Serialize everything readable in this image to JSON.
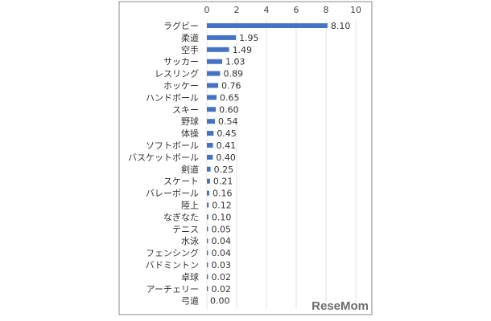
{
  "chart_data": {
    "type": "bar",
    "orientation": "horizontal",
    "categories": [
      "ラグビー",
      "柔道",
      "空手",
      "サッカー",
      "レスリング",
      "ホッケー",
      "ハンドボール",
      "スキー",
      "野球",
      "体操",
      "ソフトボール",
      "バスケットボール",
      "剣道",
      "スケート",
      "バレーボール",
      "陸上",
      "なぎなた",
      "テニス",
      "水泳",
      "フェンシング",
      "バドミントン",
      "卓球",
      "アーチェリー",
      "弓道"
    ],
    "values": [
      8.1,
      1.95,
      1.49,
      1.03,
      0.89,
      0.76,
      0.65,
      0.6,
      0.54,
      0.45,
      0.41,
      0.4,
      0.25,
      0.21,
      0.16,
      0.12,
      0.1,
      0.05,
      0.04,
      0.04,
      0.03,
      0.02,
      0.02,
      0.0
    ],
    "value_labels": [
      "8.10",
      "1.95",
      "1.49",
      "1.03",
      "0.89",
      "0.76",
      "0.65",
      "0.60",
      "0.54",
      "0.45",
      "0.41",
      "0.40",
      "0.25",
      "0.21",
      "0.16",
      "0.12",
      "0.10",
      "0.05",
      "0.04",
      "0.04",
      "0.03",
      "0.02",
      "0.02",
      "0.00"
    ],
    "xlim": [
      0,
      10
    ],
    "xticks": [
      0,
      2,
      4,
      6,
      8,
      10
    ],
    "xaxis_position": "top",
    "grid": true,
    "bar_color": "#4472c4",
    "title": "",
    "xlabel": "",
    "ylabel": ""
  },
  "watermark": "ReseMom"
}
